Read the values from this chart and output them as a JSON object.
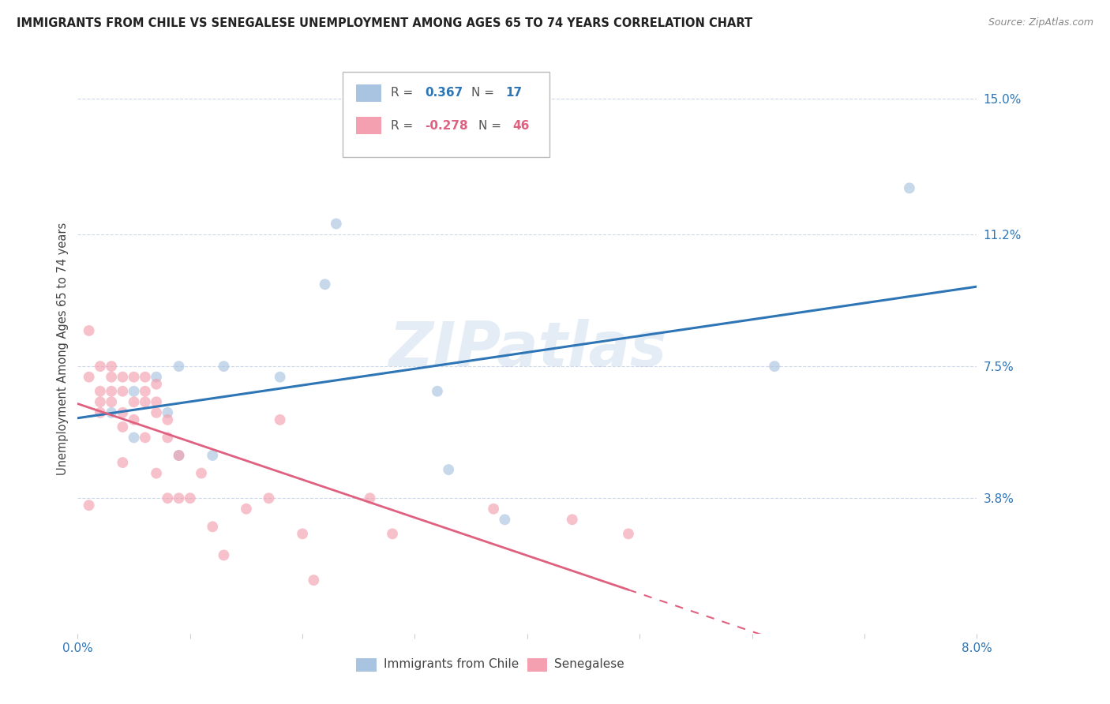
{
  "title": "IMMIGRANTS FROM CHILE VS SENEGALESE UNEMPLOYMENT AMONG AGES 65 TO 74 YEARS CORRELATION CHART",
  "source": "Source: ZipAtlas.com",
  "ylabel": "Unemployment Among Ages 65 to 74 years",
  "xmin": 0.0,
  "xmax": 0.08,
  "ymin": 0.0,
  "ymax": 0.16,
  "yticks": [
    0.038,
    0.075,
    0.112,
    0.15
  ],
  "ytick_labels": [
    "3.8%",
    "7.5%",
    "11.2%",
    "15.0%"
  ],
  "xticks": [
    0.0,
    0.01,
    0.02,
    0.03,
    0.04,
    0.05,
    0.06,
    0.07,
    0.08
  ],
  "xtick_labels": [
    "0.0%",
    "",
    "",
    "",
    "",
    "",
    "",
    "",
    "8.0%"
  ],
  "chile_color": "#a8c4e0",
  "senegal_color": "#f4a0b0",
  "trend_chile_color": "#2E75B6",
  "trend_senegal_color": "#E06080",
  "watermark": "ZIPatlas",
  "background_color": "#ffffff",
  "grid_color": "#c8d4e8",
  "marker_size": 100,
  "marker_alpha": 0.65,
  "chile_x": [
    0.003,
    0.005,
    0.005,
    0.007,
    0.008,
    0.009,
    0.009,
    0.012,
    0.013,
    0.018,
    0.022,
    0.023,
    0.032,
    0.033,
    0.038,
    0.062,
    0.074
  ],
  "chile_y": [
    0.062,
    0.068,
    0.055,
    0.072,
    0.062,
    0.05,
    0.075,
    0.05,
    0.075,
    0.072,
    0.098,
    0.115,
    0.068,
    0.046,
    0.032,
    0.075,
    0.125
  ],
  "senegal_x": [
    0.001,
    0.001,
    0.001,
    0.002,
    0.002,
    0.002,
    0.002,
    0.003,
    0.003,
    0.003,
    0.003,
    0.004,
    0.004,
    0.004,
    0.004,
    0.004,
    0.005,
    0.005,
    0.005,
    0.006,
    0.006,
    0.006,
    0.006,
    0.007,
    0.007,
    0.007,
    0.007,
    0.008,
    0.008,
    0.008,
    0.009,
    0.009,
    0.01,
    0.011,
    0.012,
    0.013,
    0.015,
    0.017,
    0.018,
    0.02,
    0.021,
    0.026,
    0.028,
    0.037,
    0.044,
    0.049
  ],
  "senegal_y": [
    0.085,
    0.072,
    0.036,
    0.075,
    0.068,
    0.065,
    0.062,
    0.075,
    0.072,
    0.068,
    0.065,
    0.072,
    0.068,
    0.062,
    0.058,
    0.048,
    0.072,
    0.065,
    0.06,
    0.072,
    0.068,
    0.065,
    0.055,
    0.07,
    0.065,
    0.062,
    0.045,
    0.06,
    0.055,
    0.038,
    0.05,
    0.038,
    0.038,
    0.045,
    0.03,
    0.022,
    0.035,
    0.038,
    0.06,
    0.028,
    0.015,
    0.038,
    0.028,
    0.035,
    0.032,
    0.028
  ],
  "legend_r_chile": "0.367",
  "legend_n_chile": "17",
  "legend_r_senegal": "-0.278",
  "legend_n_senegal": "46"
}
